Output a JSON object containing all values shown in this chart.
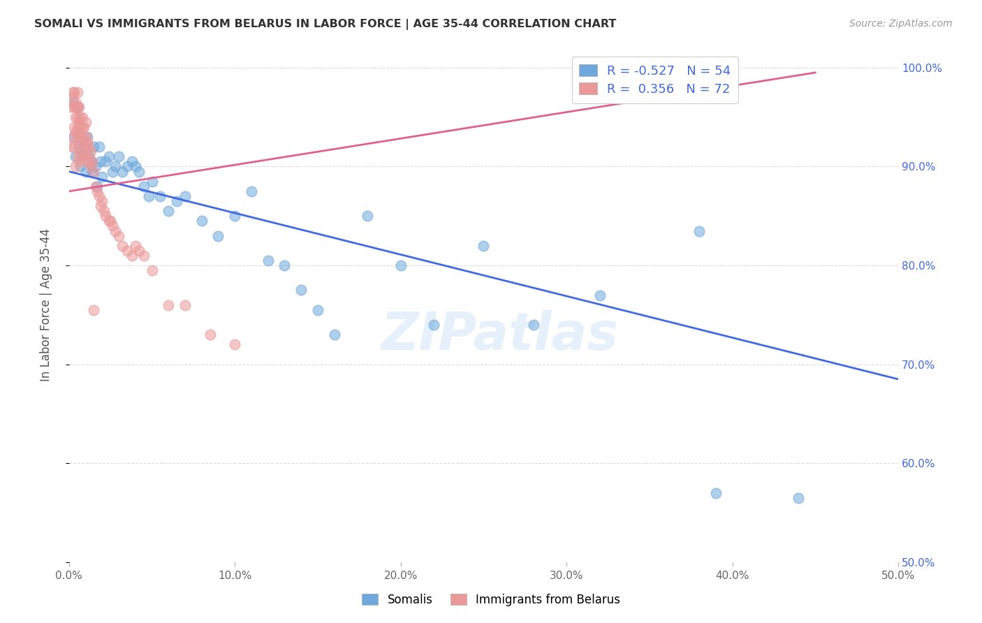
{
  "title": "SOMALI VS IMMIGRANTS FROM BELARUS IN LABOR FORCE | AGE 35-44 CORRELATION CHART",
  "source": "Source: ZipAtlas.com",
  "ylabel": "In Labor Force | Age 35-44",
  "xlim": [
    0.0,
    0.5
  ],
  "ylim": [
    0.5,
    1.02
  ],
  "xticks": [
    0.0,
    0.1,
    0.2,
    0.3,
    0.4,
    0.5
  ],
  "xticklabels": [
    "0.0%",
    "10.0%",
    "20.0%",
    "30.0%",
    "40.0%",
    "50.0%"
  ],
  "yticks": [
    0.5,
    0.6,
    0.7,
    0.8,
    0.9,
    1.0
  ],
  "yticklabels": [
    "50.0%",
    "60.0%",
    "70.0%",
    "80.0%",
    "90.0%",
    "100.0%"
  ],
  "blue_color": "#6fa8dc",
  "pink_color": "#ea9999",
  "blue_line_color": "#4169E1",
  "pink_line_color": "#e06090",
  "R_blue": -0.527,
  "N_blue": 54,
  "R_pink": 0.356,
  "N_pink": 72,
  "legend_label_blue": "Somalis",
  "legend_label_pink": "Immigrants from Belarus",
  "watermark": "ZIPatlas",
  "blue_line_x0": 0.0,
  "blue_line_y0": 0.895,
  "blue_line_x1": 0.5,
  "blue_line_y1": 0.685,
  "pink_line_x0": 0.0,
  "pink_line_y0": 0.875,
  "pink_line_x1": 0.45,
  "pink_line_y1": 0.995,
  "blue_x": [
    0.002,
    0.003,
    0.004,
    0.005,
    0.006,
    0.007,
    0.008,
    0.009,
    0.01,
    0.011,
    0.012,
    0.013,
    0.014,
    0.015,
    0.016,
    0.017,
    0.018,
    0.019,
    0.02,
    0.022,
    0.024,
    0.026,
    0.028,
    0.03,
    0.032,
    0.035,
    0.038,
    0.04,
    0.042,
    0.045,
    0.048,
    0.05,
    0.055,
    0.06,
    0.065,
    0.07,
    0.08,
    0.09,
    0.1,
    0.11,
    0.12,
    0.13,
    0.14,
    0.15,
    0.16,
    0.18,
    0.2,
    0.22,
    0.25,
    0.28,
    0.32,
    0.38,
    0.39,
    0.44
  ],
  "blue_y": [
    0.965,
    0.93,
    0.91,
    0.96,
    0.92,
    0.9,
    0.91,
    0.92,
    0.895,
    0.93,
    0.91,
    0.905,
    0.895,
    0.92,
    0.9,
    0.88,
    0.92,
    0.905,
    0.89,
    0.905,
    0.91,
    0.895,
    0.9,
    0.91,
    0.895,
    0.9,
    0.905,
    0.9,
    0.895,
    0.88,
    0.87,
    0.885,
    0.87,
    0.855,
    0.865,
    0.87,
    0.845,
    0.83,
    0.85,
    0.875,
    0.805,
    0.8,
    0.775,
    0.755,
    0.73,
    0.85,
    0.8,
    0.74,
    0.82,
    0.74,
    0.77,
    0.835,
    0.57,
    0.565
  ],
  "pink_x": [
    0.001,
    0.001,
    0.002,
    0.002,
    0.002,
    0.003,
    0.003,
    0.003,
    0.003,
    0.004,
    0.004,
    0.004,
    0.004,
    0.004,
    0.005,
    0.005,
    0.005,
    0.005,
    0.005,
    0.005,
    0.006,
    0.006,
    0.006,
    0.006,
    0.006,
    0.007,
    0.007,
    0.007,
    0.007,
    0.008,
    0.008,
    0.008,
    0.008,
    0.009,
    0.009,
    0.009,
    0.01,
    0.01,
    0.01,
    0.01,
    0.011,
    0.011,
    0.012,
    0.012,
    0.013,
    0.013,
    0.014,
    0.015,
    0.016,
    0.017,
    0.018,
    0.019,
    0.02,
    0.021,
    0.022,
    0.024,
    0.026,
    0.028,
    0.03,
    0.032,
    0.035,
    0.038,
    0.04,
    0.042,
    0.045,
    0.05,
    0.06,
    0.07,
    0.085,
    0.1,
    0.025,
    0.015
  ],
  "pink_y": [
    0.96,
    0.92,
    0.975,
    0.97,
    0.93,
    0.975,
    0.96,
    0.94,
    0.92,
    0.965,
    0.96,
    0.95,
    0.935,
    0.9,
    0.975,
    0.96,
    0.95,
    0.94,
    0.93,
    0.91,
    0.96,
    0.945,
    0.935,
    0.92,
    0.905,
    0.95,
    0.94,
    0.93,
    0.915,
    0.95,
    0.94,
    0.925,
    0.91,
    0.94,
    0.93,
    0.91,
    0.945,
    0.93,
    0.92,
    0.905,
    0.925,
    0.91,
    0.92,
    0.905,
    0.915,
    0.9,
    0.905,
    0.895,
    0.88,
    0.875,
    0.87,
    0.86,
    0.865,
    0.855,
    0.85,
    0.845,
    0.84,
    0.835,
    0.83,
    0.82,
    0.815,
    0.81,
    0.82,
    0.815,
    0.81,
    0.795,
    0.76,
    0.76,
    0.73,
    0.72,
    0.845,
    0.755
  ]
}
